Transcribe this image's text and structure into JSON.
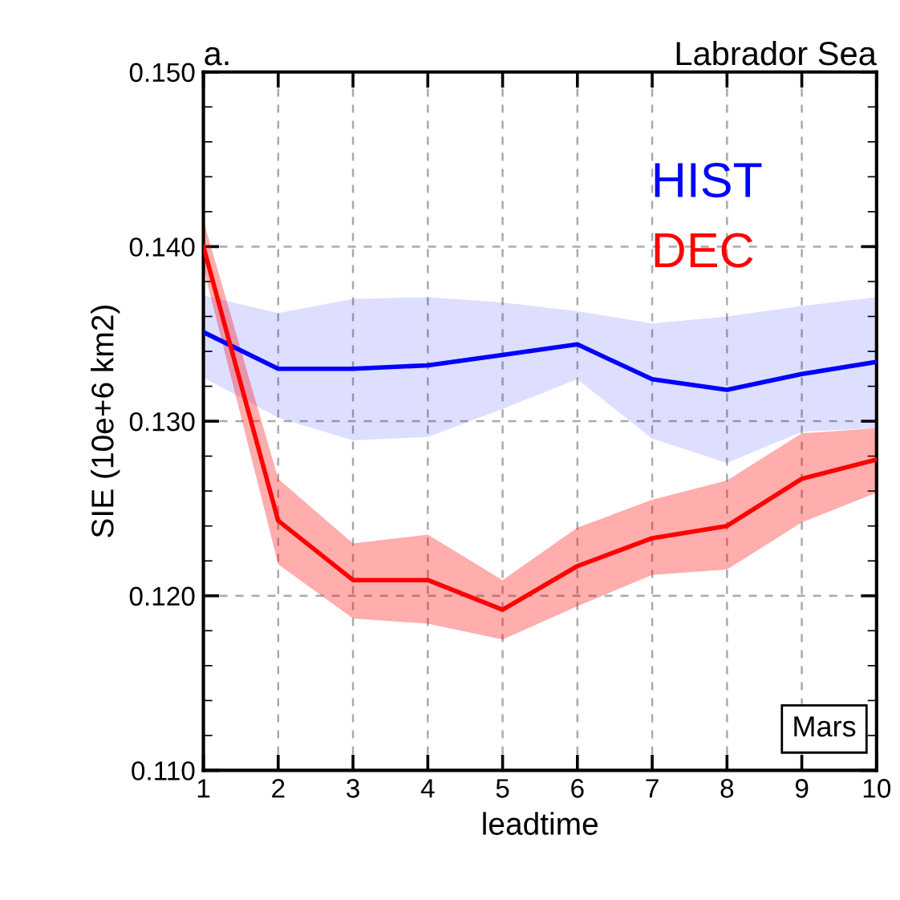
{
  "chart_data": {
    "type": "line",
    "title": "a.",
    "subtitle": "Labrador Sea",
    "xlabel": "leadtime",
    "ylabel": "SIE (10e+6 km2)",
    "x": [
      1,
      2,
      3,
      4,
      5,
      6,
      7,
      8,
      9,
      10
    ],
    "series": [
      {
        "name": "HIST",
        "color": "#0000ff",
        "values": [
          0.1351,
          0.133,
          0.133,
          0.1332,
          0.1338,
          0.1344,
          0.1324,
          0.1318,
          0.1327,
          0.1334
        ],
        "lower": [
          0.1325,
          0.1302,
          0.1289,
          0.1291,
          0.1307,
          0.1324,
          0.129,
          0.1276,
          0.1294,
          0.1296
        ],
        "upper": [
          0.1372,
          0.1362,
          0.137,
          0.1371,
          0.1368,
          0.1363,
          0.1356,
          0.136,
          0.1366,
          0.1371
        ]
      },
      {
        "name": "DEC",
        "color": "#ff0000",
        "values": [
          0.14,
          0.1243,
          0.1209,
          0.1209,
          0.1192,
          0.1217,
          0.1233,
          0.124,
          0.1267,
          0.1278
        ],
        "lower": [
          0.1388,
          0.1218,
          0.1187,
          0.1184,
          0.1175,
          0.1194,
          0.1212,
          0.1215,
          0.1242,
          0.1259
        ],
        "upper": [
          0.1415,
          0.1267,
          0.123,
          0.1235,
          0.1209,
          0.1239,
          0.1255,
          0.1266,
          0.1293,
          0.1296
        ]
      }
    ],
    "xlim": [
      1,
      10
    ],
    "xticks": [
      1,
      2,
      3,
      4,
      5,
      6,
      7,
      8,
      9,
      10
    ],
    "ylim": [
      0.11,
      0.15
    ],
    "yticks": [
      {
        "value": 0.11,
        "label": "0.110"
      },
      {
        "value": 0.12,
        "label": "0.120"
      },
      {
        "value": 0.13,
        "label": "0.130"
      },
      {
        "value": 0.14,
        "label": "0.140"
      },
      {
        "value": 0.15,
        "label": "0.150"
      }
    ],
    "grid": true,
    "legend": "top right",
    "marker": "none",
    "line_style": "solid",
    "annotations": [
      "Mars"
    ]
  }
}
